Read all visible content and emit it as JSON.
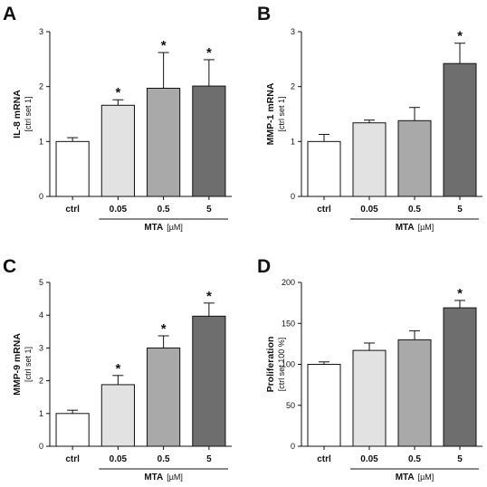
{
  "colors": {
    "axis": "#111111",
    "bar_fills": [
      "#ffffff",
      "#e2e2e2",
      "#a9a9a9",
      "#6e6e6e"
    ]
  },
  "chart_data": [
    {
      "type": "bar",
      "panel": "A",
      "categories": [
        "ctrl",
        "0.05",
        "0.5",
        "5"
      ],
      "values": [
        1.0,
        1.66,
        1.97,
        2.01
      ],
      "errors": [
        0.07,
        0.1,
        0.65,
        0.48
      ],
      "significant": [
        false,
        true,
        true,
        true
      ],
      "significance_marker": "*",
      "ylabel": "IL-8 mRNA",
      "ylabel_sub": "[ctrl set 1]",
      "ylim": [
        0,
        3
      ],
      "yticks": [
        "0",
        "1",
        "2",
        "3"
      ],
      "group_label": "MTA",
      "group_unit": "[µM]"
    },
    {
      "type": "bar",
      "panel": "B",
      "categories": [
        "ctrl",
        "0.05",
        "0.5",
        "5"
      ],
      "values": [
        1.0,
        1.34,
        1.38,
        2.42
      ],
      "errors": [
        0.13,
        0.05,
        0.24,
        0.37
      ],
      "significant": [
        false,
        false,
        false,
        true
      ],
      "significance_marker": "*",
      "ylabel": "MMP-1 mRNA",
      "ylabel_sub": "[ctrl set 1]",
      "ylim": [
        0,
        3
      ],
      "yticks": [
        "0",
        "1",
        "2",
        "3"
      ],
      "group_label": "MTA",
      "group_unit": "[µM]"
    },
    {
      "type": "bar",
      "panel": "C",
      "categories": [
        "ctrl",
        "0.05",
        "0.5",
        "5"
      ],
      "values": [
        1.0,
        1.88,
        3.0,
        3.97
      ],
      "errors": [
        0.1,
        0.28,
        0.37,
        0.4
      ],
      "significant": [
        false,
        true,
        true,
        true
      ],
      "significance_marker": "*",
      "ylabel": "MMP-9 mRNA",
      "ylabel_sub": "[ctrl set 1]",
      "ylim": [
        0,
        5
      ],
      "yticks": [
        "0",
        "1",
        "2",
        "3",
        "4",
        "5"
      ],
      "group_label": "MTA",
      "group_unit": "[µM]"
    },
    {
      "type": "bar",
      "panel": "D",
      "categories": [
        "ctrl",
        "0.05",
        "0.5",
        "5"
      ],
      "values": [
        100,
        117,
        130,
        169
      ],
      "errors": [
        3,
        9,
        11,
        9
      ],
      "significant": [
        false,
        false,
        false,
        true
      ],
      "significance_marker": "*",
      "ylabel": "Proliferation",
      "ylabel_sub": "[ctrl set 100 %]",
      "ylim": [
        0,
        200
      ],
      "yticks": [
        "0",
        "50",
        "100",
        "150",
        "200"
      ],
      "group_label": "MTA",
      "group_unit": "[µM]"
    }
  ]
}
